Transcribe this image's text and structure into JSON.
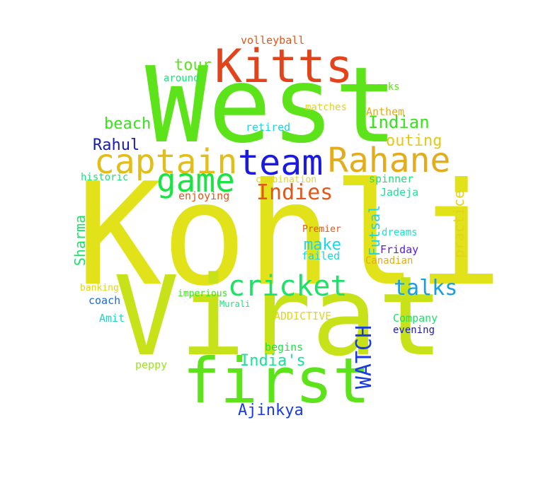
{
  "word_cloud": {
    "words": [
      {
        "text": "Kohli",
        "color": "#e2e21a"
      },
      {
        "text": "West",
        "color": "#5ce31a"
      },
      {
        "text": "Virat",
        "color": "#c8e21a"
      },
      {
        "text": "first",
        "color": "#5ce31a"
      },
      {
        "text": "Kitts",
        "color": "#e3431a"
      },
      {
        "text": "captain",
        "color": "#e2be1a"
      },
      {
        "text": "team",
        "color": "#1a1ae3"
      },
      {
        "text": "Rahane",
        "color": "#e3ac1a"
      },
      {
        "text": "game",
        "color": "#1ae344"
      },
      {
        "text": "cricket",
        "color": "#1ae366"
      },
      {
        "text": "Indies",
        "color": "#e3561a"
      },
      {
        "text": "talks",
        "color": "#1a9ee3"
      },
      {
        "text": "Indian",
        "color": "#37e31a"
      },
      {
        "text": "tour",
        "color": "#5ce31a"
      },
      {
        "text": "beach",
        "color": "#37e31a"
      },
      {
        "text": "Rahul",
        "color": "#1a1ab5"
      },
      {
        "text": "outing",
        "color": "#e3c81a"
      },
      {
        "text": "make",
        "color": "#1ad6e3"
      },
      {
        "text": "India's",
        "color": "#1ae399"
      },
      {
        "text": "Ajinkya",
        "color": "#1a3be3"
      },
      {
        "text": "WATCH",
        "color": "#1a3be3"
      },
      {
        "text": "Sharma",
        "color": "#1ae366"
      },
      {
        "text": "Futsal",
        "color": "#1ad6e3"
      },
      {
        "text": "practice",
        "color": "#e3d51a"
      },
      {
        "text": "volleyball",
        "color": "#e3561a"
      },
      {
        "text": "around",
        "color": "#1ae37a"
      },
      {
        "text": "knocks",
        "color": "#5ce31a"
      },
      {
        "text": "matches",
        "color": "#e3d51a"
      },
      {
        "text": "Anthem",
        "color": "#e3ac1a"
      },
      {
        "text": "retired",
        "color": "#1ad6e3"
      },
      {
        "text": "historic",
        "color": "#1ae37a"
      },
      {
        "text": "combination",
        "color": "#e3d51a"
      },
      {
        "text": "spinner",
        "color": "#1ae37a"
      },
      {
        "text": "enjoying",
        "color": "#e3561a"
      },
      {
        "text": "Jadeja",
        "color": "#1ae399"
      },
      {
        "text": "Premier",
        "color": "#e3561a"
      },
      {
        "text": "dreams",
        "color": "#1ae3c8"
      },
      {
        "text": "Friday",
        "color": "#5a1ae3"
      },
      {
        "text": "failed",
        "color": "#1ad6e3"
      },
      {
        "text": "Canadian",
        "color": "#e3ac1a"
      },
      {
        "text": "banking",
        "color": "#e3d51a"
      },
      {
        "text": "imperious",
        "color": "#37e31a"
      },
      {
        "text": "coach",
        "color": "#1a6ae3"
      },
      {
        "text": "Murali",
        "color": "#1ae37a"
      },
      {
        "text": "ADDICTIVE",
        "color": "#e3d51a"
      },
      {
        "text": "Amit",
        "color": "#1ad6c8"
      },
      {
        "text": "Company",
        "color": "#1ae366"
      },
      {
        "text": "evening",
        "color": "#1a1ab5"
      },
      {
        "text": "begins",
        "color": "#1ae344"
      },
      {
        "text": "peppy",
        "color": "#9ee31a"
      }
    ]
  }
}
